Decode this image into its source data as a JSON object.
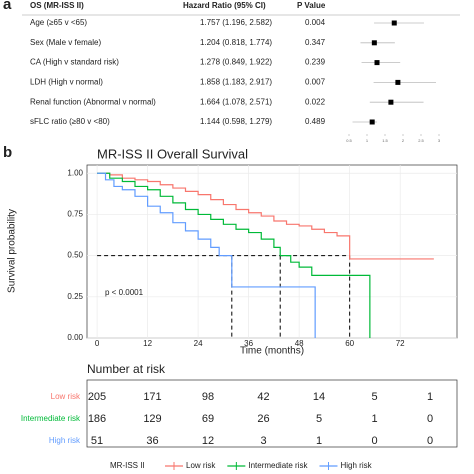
{
  "panel_labels": [
    "a",
    "b"
  ],
  "chart_data": [
    {
      "type": "forest",
      "columns": [
        "OS (MR-ISS II)",
        "Hazard Ratio (95% CI)",
        "P Value"
      ],
      "categories": [
        "Age (≥65 v <65)",
        "Sex (Male v female)",
        "CA (High v standard risk)",
        "LDH (High v normal)",
        "Renal function (Abnormal v normal)",
        "sFLC ratio (≥80 v <80)"
      ],
      "values": [
        1.757,
        1.204,
        1.278,
        1.858,
        1.664,
        1.144
      ],
      "lower": [
        1.196,
        0.818,
        0.849,
        1.183,
        1.078,
        0.598
      ],
      "upper": [
        2.582,
        1.774,
        1.922,
        2.917,
        2.571,
        1.279
      ],
      "value_labels": [
        "1.757 (1.196, 2.582)",
        "1.204 (0.818, 1.774)",
        "1.278 (0.849, 1.922)",
        "1.858 (1.183, 2.917)",
        "1.664 (1.078, 2.571)",
        "1.144 (0.598, 1.279)"
      ],
      "p_values": [
        0.004,
        0.347,
        0.239,
        0.007,
        0.022,
        0.489
      ],
      "xlim": [
        0.25,
        3.25
      ],
      "xticks": [
        0.5,
        1,
        1.5,
        2,
        2.5,
        3
      ],
      "color": "#000000"
    },
    {
      "type": "step",
      "title": "MR-ISS II Overall Survival",
      "xlabel": "Time (months)",
      "ylabel": "Survival probability",
      "annotation": "p < 0.0001",
      "legend_title": "MR-ISS II",
      "xlim": [
        -2.4,
        85.5
      ],
      "ylim": [
        0,
        1.05
      ],
      "xticks": [
        0,
        12,
        24,
        36,
        48,
        60,
        72
      ],
      "yticks": [
        {
          "value": 0,
          "label": "0.00"
        },
        {
          "value": 0.25,
          "label": "0.25"
        },
        {
          "value": 0.5,
          "label": "0.50"
        },
        {
          "value": 0.75,
          "label": "0.75"
        },
        {
          "value": 1,
          "label": "1.00"
        }
      ],
      "grid": true,
      "median_level": 0.5,
      "series": [
        {
          "name": "Low risk",
          "color": "#f8766d",
          "median": 60,
          "x": [
            0,
            3,
            6,
            9,
            12,
            15,
            18,
            21,
            24,
            27,
            30,
            33,
            36,
            39,
            42,
            45,
            48,
            51,
            54,
            57,
            60,
            80
          ],
          "values": [
            1,
            0.99,
            0.97,
            0.96,
            0.95,
            0.93,
            0.91,
            0.89,
            0.87,
            0.84,
            0.81,
            0.78,
            0.76,
            0.74,
            0.71,
            0.69,
            0.68,
            0.66,
            0.64,
            0.62,
            0.48,
            0.48
          ]
        },
        {
          "name": "Intermediate risk",
          "color": "#00ba38",
          "median": 43.5,
          "x": [
            0,
            3,
            6,
            9,
            12,
            15,
            18,
            21,
            24,
            27,
            30,
            33,
            36,
            39,
            42,
            43.5,
            46,
            48,
            51,
            64.8
          ],
          "values": [
            1,
            0.97,
            0.95,
            0.92,
            0.9,
            0.86,
            0.82,
            0.78,
            0.75,
            0.72,
            0.69,
            0.66,
            0.64,
            0.6,
            0.55,
            0.5,
            0.46,
            0.43,
            0.38,
            0
          ]
        },
        {
          "name": "High risk",
          "color": "#619cff",
          "median": 32,
          "x": [
            0,
            2,
            4,
            6,
            9,
            12,
            15,
            18,
            21,
            24,
            27,
            29,
            32,
            51.8
          ],
          "values": [
            1,
            0.96,
            0.92,
            0.9,
            0.86,
            0.8,
            0.76,
            0.7,
            0.65,
            0.6,
            0.55,
            0.5,
            0.31,
            0
          ]
        }
      ]
    }
  ],
  "risk_table": {
    "title": "Number at risk",
    "rows": [
      {
        "label": "Low risk",
        "color": "#f8766d",
        "counts": [
          205,
          171,
          98,
          42,
          14,
          5,
          1
        ]
      },
      {
        "label": "Intermediate risk",
        "color": "#00ba38",
        "counts": [
          186,
          129,
          69,
          26,
          5,
          1,
          0
        ]
      },
      {
        "label": "High risk",
        "color": "#619cff",
        "counts": [
          51,
          36,
          12,
          3,
          1,
          0,
          0
        ]
      }
    ]
  }
}
